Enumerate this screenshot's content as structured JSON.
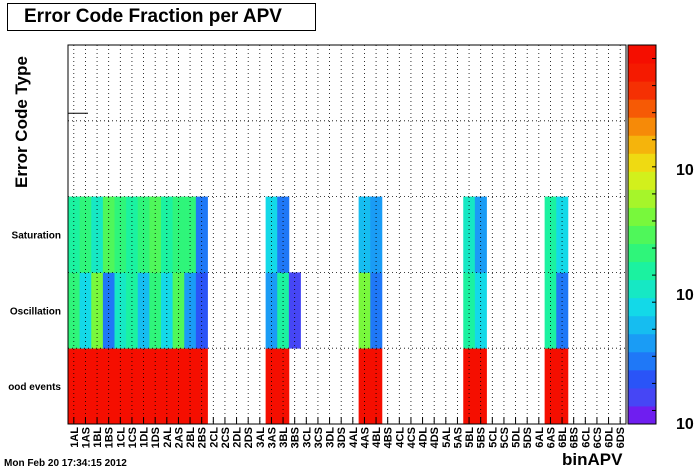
{
  "title": "Error Code Fraction per APV",
  "footer": {
    "timestamp": "Mon Feb 20 17:34:15 2012"
  },
  "colors": {
    "frame": "#000000",
    "gridline": "#000000",
    "background": "#ffffff"
  },
  "chart_data": {
    "type": "heatmap",
    "title": "Error Code Fraction per APV",
    "xlabel": "binAPV",
    "ylabel": "Error Code Type",
    "x_categories": [
      "1AL",
      "1AS",
      "1BL",
      "1BS",
      "1CL",
      "1CS",
      "1DL",
      "1DS",
      "2AL",
      "2AS",
      "2BL",
      "2BS",
      "2CL",
      "2CS",
      "2DL",
      "2DS",
      "3AL",
      "3AS",
      "3BL",
      "3BS",
      "3CL",
      "3CS",
      "3DL",
      "3DS",
      "4AL",
      "4AS",
      "4BL",
      "4BS",
      "4CL",
      "4CS",
      "4DL",
      "4DS",
      "5AL",
      "5AS",
      "5BL",
      "5BS",
      "5CL",
      "5CS",
      "5DL",
      "5DS",
      "6AL",
      "6AS",
      "6BL",
      "6BS",
      "6CL",
      "6CS",
      "6DL",
      "6DS"
    ],
    "y_categories": [
      "ood events",
      "Oscillation",
      "Saturation",
      "",
      ""
    ],
    "z_axis": {
      "labels": [
        "10",
        "10",
        "10"
      ]
    },
    "grid": true,
    "palette": [
      "#6f1ef0",
      "#4646f5",
      "#2a54f7",
      "#1f78f7",
      "#1a9cf5",
      "#16bdf0",
      "#13d9e8",
      "#16e8c4",
      "#1bf2a0",
      "#2ff57a",
      "#4ff75a",
      "#78f83c",
      "#a6f52a",
      "#d2f01c",
      "#efda12",
      "#f5b40c",
      "#f68a08",
      "#f65a05",
      "#f53003",
      "#f51a00",
      "#f50e00"
    ],
    "z_levels": [
      [
        20,
        20,
        20,
        20,
        20,
        20,
        20,
        20,
        20,
        20,
        20,
        20,
        -1,
        -1,
        -1,
        -1,
        -1,
        20,
        20,
        -1,
        -1,
        -1,
        -1,
        -1,
        -1,
        20,
        20,
        -1,
        -1,
        -1,
        -1,
        -1,
        -1,
        -1,
        20,
        20,
        -1,
        -1,
        -1,
        -1,
        -1,
        20,
        20,
        -1,
        -1,
        -1,
        -1,
        -1
      ],
      [
        9,
        6,
        11,
        3,
        7,
        8,
        5,
        9,
        6,
        10,
        4,
        2,
        -1,
        -1,
        -1,
        -1,
        -1,
        4,
        8,
        1,
        -1,
        -1,
        -1,
        -1,
        -1,
        11,
        3,
        -1,
        -1,
        -1,
        -1,
        -1,
        -1,
        -1,
        8,
        6,
        -1,
        -1,
        -1,
        -1,
        -1,
        8,
        3,
        -1,
        -1,
        -1,
        -1,
        -1
      ],
      [
        8,
        9,
        7,
        10,
        9,
        8,
        9,
        10,
        8,
        9,
        9,
        3,
        -1,
        -1,
        -1,
        -1,
        -1,
        6,
        3,
        -1,
        -1,
        -1,
        -1,
        -1,
        -1,
        5,
        4,
        -1,
        -1,
        -1,
        -1,
        -1,
        -1,
        -1,
        7,
        4,
        -1,
        -1,
        -1,
        -1,
        -1,
        8,
        6,
        -1,
        -1,
        -1,
        -1,
        -1
      ],
      [
        -1,
        -1,
        -1,
        -1,
        -1,
        -1,
        -1,
        -1,
        -1,
        -1,
        -1,
        -1,
        -1,
        -1,
        -1,
        -1,
        -1,
        -1,
        -1,
        -1,
        -1,
        -1,
        -1,
        -1,
        -1,
        -1,
        -1,
        -1,
        -1,
        -1,
        -1,
        -1,
        -1,
        -1,
        -1,
        -1,
        -1,
        -1,
        -1,
        -1,
        -1,
        -1,
        -1,
        -1,
        -1,
        -1,
        -1,
        -1
      ],
      [
        -1,
        -1,
        -1,
        -1,
        -1,
        -1,
        -1,
        -1,
        -1,
        -1,
        -1,
        -1,
        -1,
        -1,
        -1,
        -1,
        -1,
        -1,
        -1,
        -1,
        -1,
        -1,
        -1,
        -1,
        -1,
        -1,
        -1,
        -1,
        -1,
        -1,
        -1,
        -1,
        -1,
        -1,
        -1,
        -1,
        -1,
        -1,
        -1,
        -1,
        -1,
        -1,
        -1,
        -1,
        -1,
        -1,
        -1,
        -1
      ]
    ]
  }
}
